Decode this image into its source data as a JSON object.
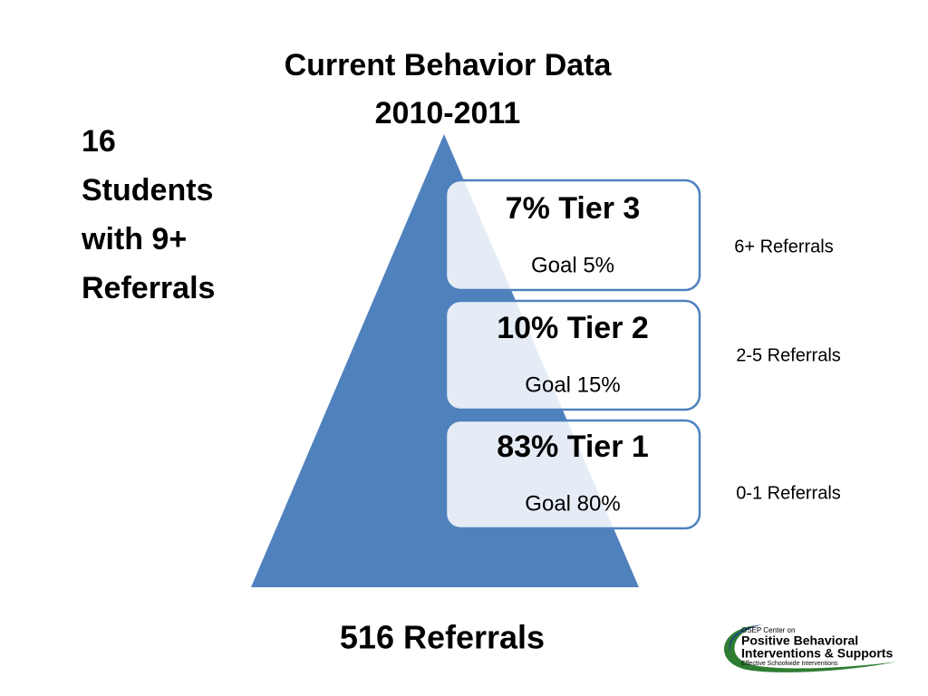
{
  "header": {
    "title_lines": [
      "Current Behavior Data",
      "2010-2011"
    ]
  },
  "side_note": {
    "lines": [
      "16",
      "Students",
      "with 9+",
      "Referrals"
    ]
  },
  "tiers": [
    {
      "label": "7% Tier 3",
      "goal": "Goal 5%",
      "referrals": "6+ Referrals"
    },
    {
      "label": "10% Tier 2",
      "goal": "Goal 15%",
      "referrals": "2-5 Referrals"
    },
    {
      "label": "83% Tier 1",
      "goal": "Goal 80%",
      "referrals": "0-1 Referrals"
    }
  ],
  "footer": {
    "total": "516 Referrals"
  },
  "logo": {
    "lines": [
      "OSEP Center on",
      "Positive Behavioral",
      "Interventions & Supports",
      "Effective Schoolwide Interventions"
    ]
  }
}
